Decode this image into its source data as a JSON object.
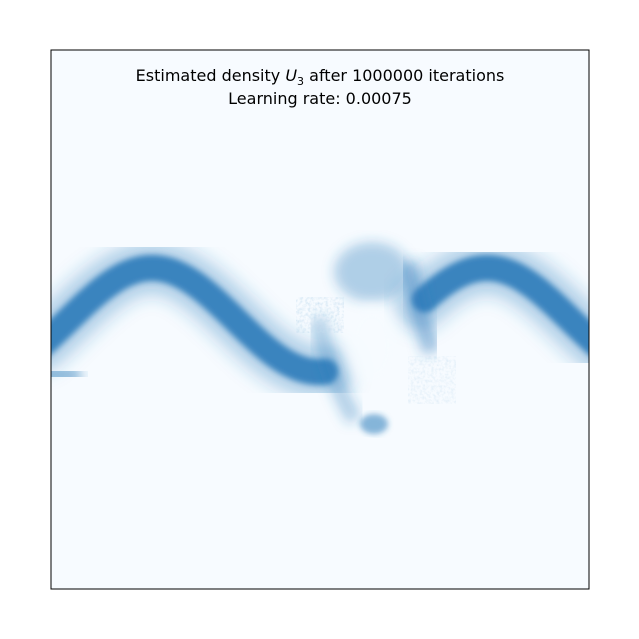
{
  "chart_data": {
    "type": "heatmap",
    "title_prefix": "Estimated density ",
    "title_symbol": "U",
    "title_subscript": "3",
    "title_suffix": " after 1000000 iterations",
    "subtitle": "Learning rate: 0.00075",
    "colormap": "Blues",
    "background_color": "#f7fbff",
    "band_color": "#2b7bba",
    "band_dark_color": "#1764ab",
    "frame_color": "#000000",
    "xticks": [],
    "yticks": [],
    "grid": false,
    "legend": "none"
  }
}
